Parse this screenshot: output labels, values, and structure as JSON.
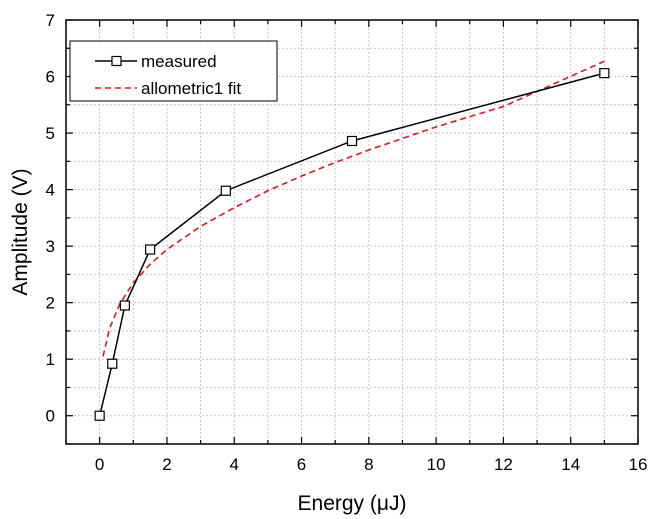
{
  "chart_data": {
    "type": "line",
    "xlabel": "Energy (μJ)",
    "ylabel": "Amplitude (V)",
    "xlim": [
      -1,
      16
    ],
    "ylim": [
      -0.5,
      7
    ],
    "x_ticks": [
      0,
      2,
      4,
      6,
      8,
      10,
      12,
      14,
      16
    ],
    "x_tick_labels": [
      "0",
      "2",
      "4",
      "6",
      "8",
      "10",
      "12",
      "14",
      "16"
    ],
    "y_ticks": [
      0,
      1,
      2,
      3,
      4,
      5,
      6,
      7
    ],
    "y_tick_labels": [
      "0",
      "1",
      "2",
      "3",
      "4",
      "5",
      "6",
      "7"
    ],
    "grid": true,
    "legend_position": "top-left",
    "series": [
      {
        "name": "measured",
        "style": "solid line with open square markers",
        "color": "#000000",
        "x": [
          0,
          0.375,
          0.75,
          1.5,
          3.75,
          7.5,
          15
        ],
        "y": [
          0,
          0.92,
          1.95,
          2.94,
          3.98,
          4.86,
          6.06
        ]
      },
      {
        "name": "allometric1 fit",
        "style": "dashed line",
        "color": "#e8141b",
        "x": [
          0.1,
          0.3,
          0.6,
          1.0,
          1.5,
          2.0,
          3.0,
          4.0,
          5.0,
          6.0,
          7.0,
          8.0,
          10.0,
          12.0,
          15.0
        ],
        "y": [
          1.05,
          1.55,
          1.98,
          2.35,
          2.68,
          2.94,
          3.35,
          3.68,
          3.98,
          4.24,
          4.48,
          4.7,
          5.11,
          5.47,
          6.27
        ]
      }
    ]
  }
}
